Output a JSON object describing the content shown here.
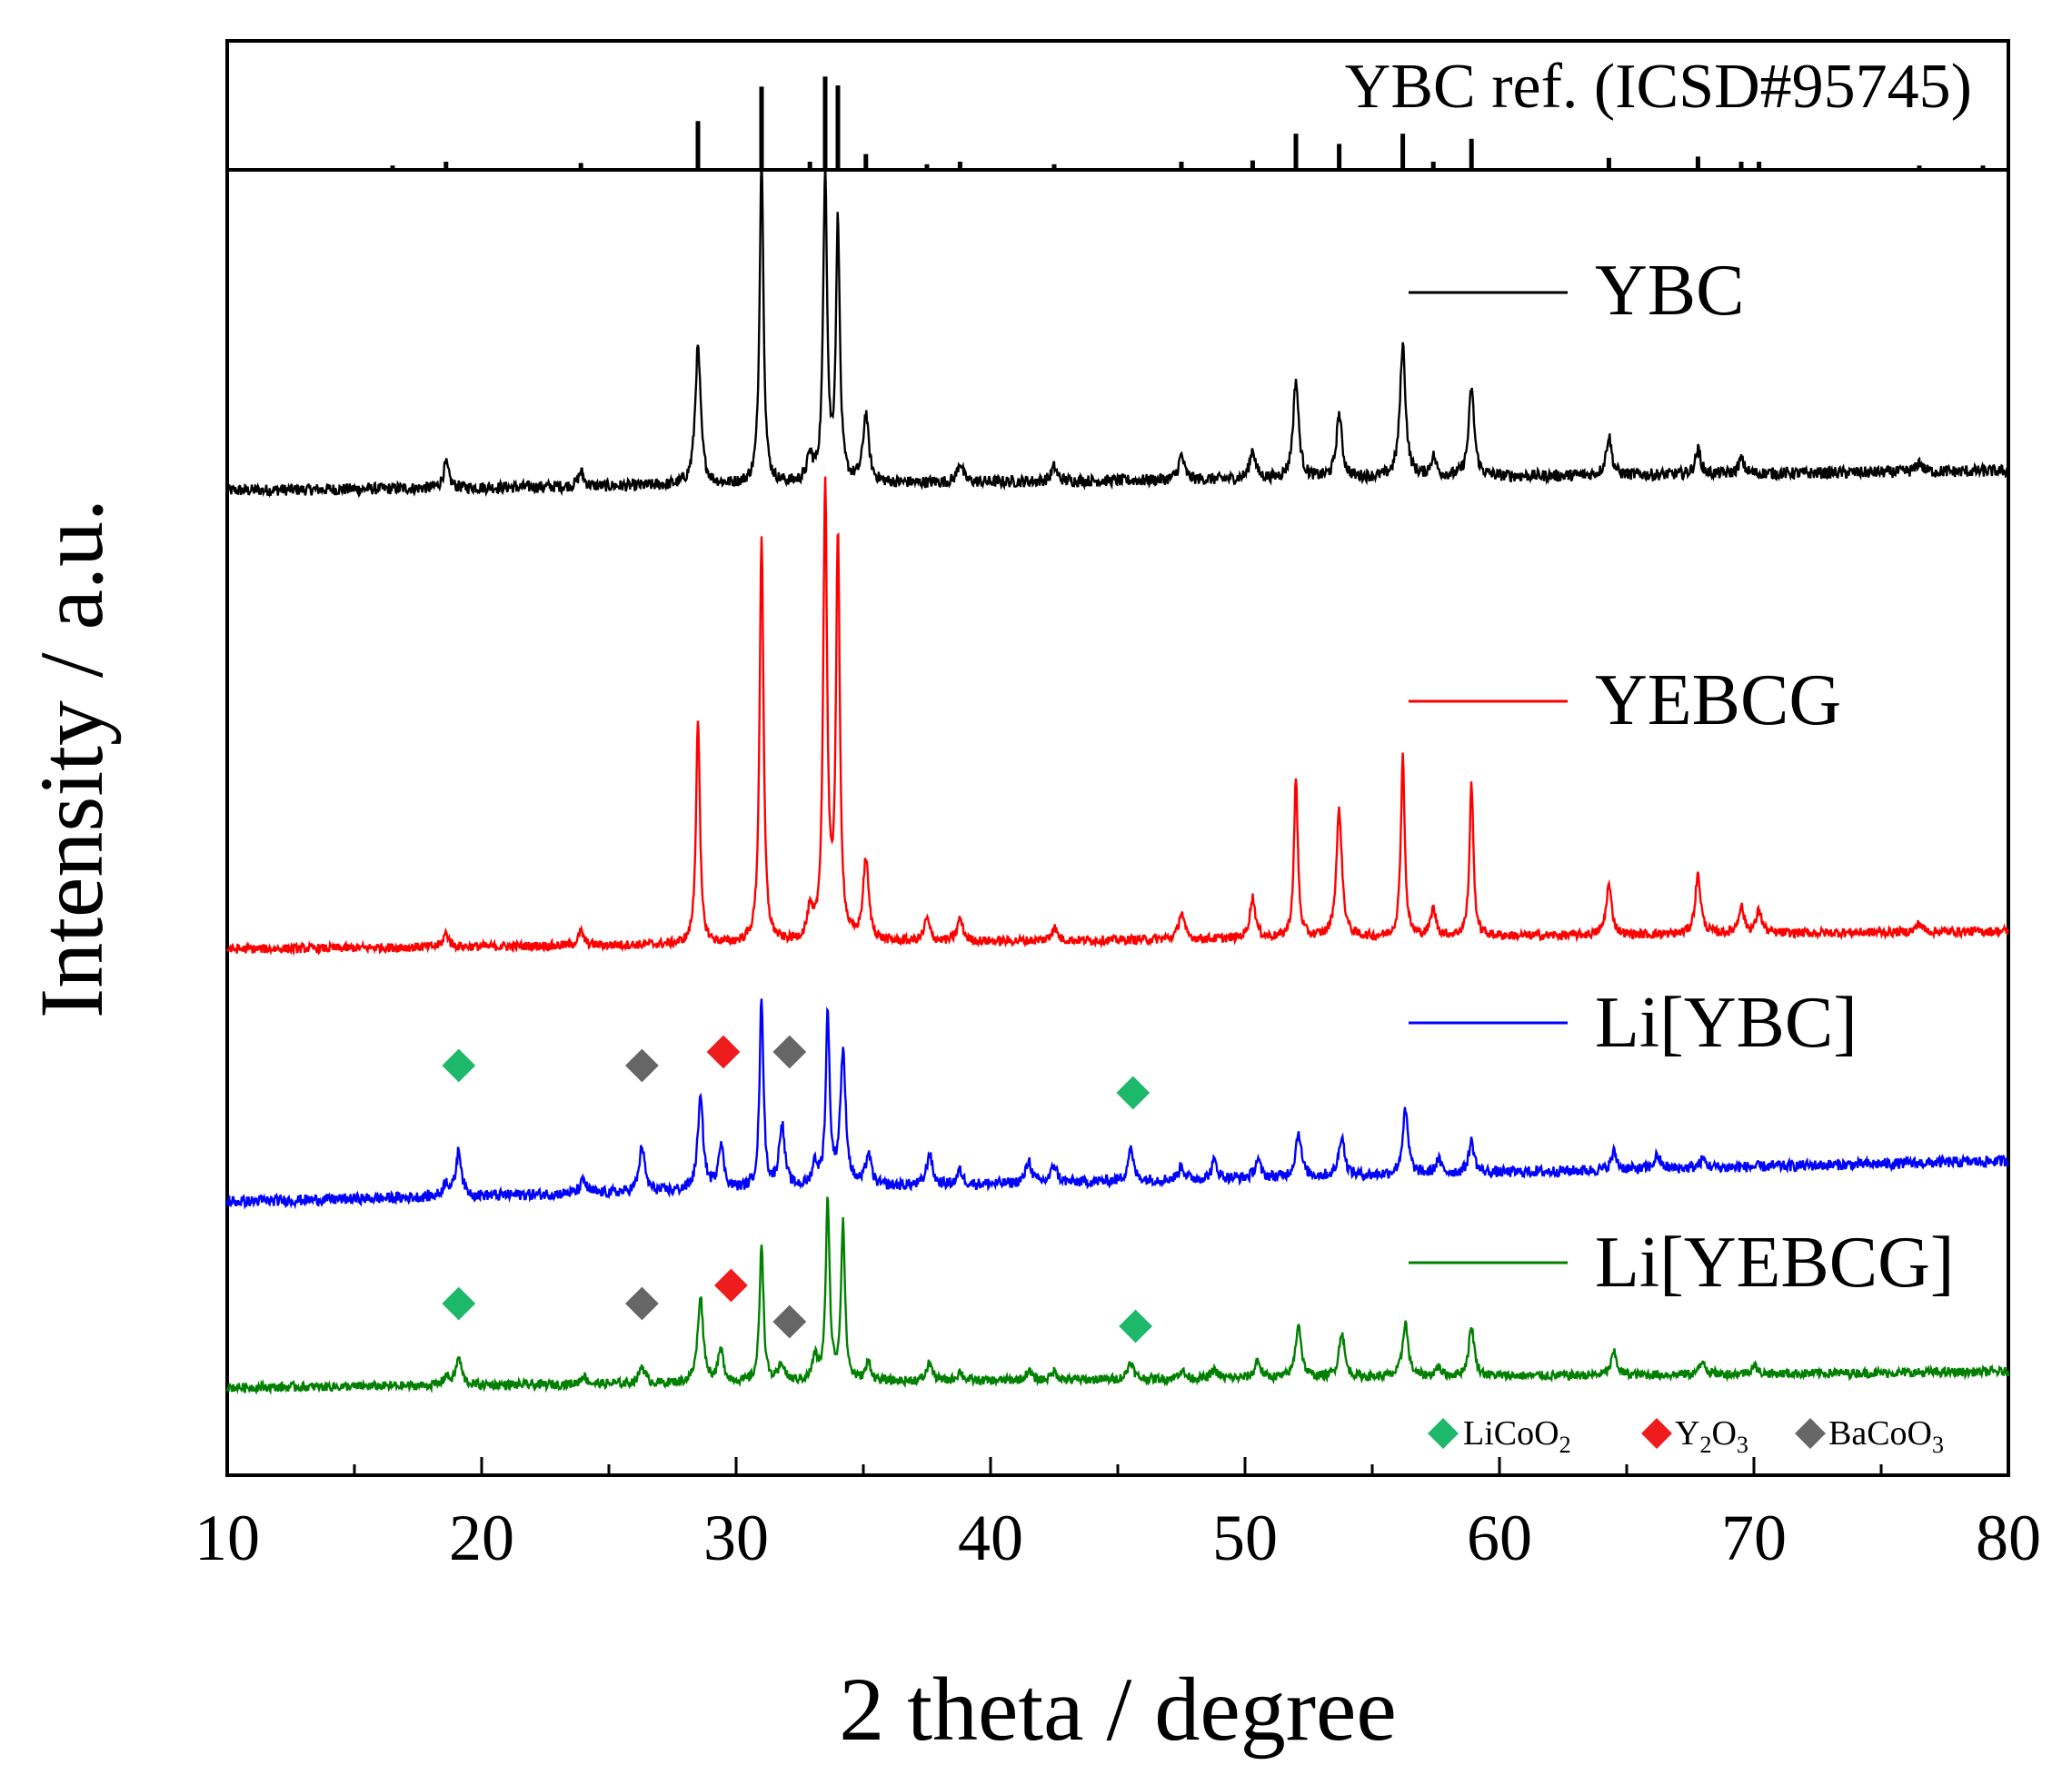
{
  "chart_data": {
    "type": "line",
    "title": "",
    "xlabel": "2 theta / degree",
    "ylabel": "Intensity / a.u.",
    "xlim": [
      10,
      80
    ],
    "x_ticks": [
      10,
      20,
      30,
      40,
      50,
      60,
      70,
      80
    ],
    "grid": false,
    "reference": {
      "name": "YBC ref. (ICSD#95745)",
      "color": "#000000",
      "peaks": [
        {
          "x": 16.5,
          "h": 0.02
        },
        {
          "x": 18.6,
          "h": 0.05
        },
        {
          "x": 23.9,
          "h": 0.04
        },
        {
          "x": 28.5,
          "h": 0.37
        },
        {
          "x": 31.0,
          "h": 0.64
        },
        {
          "x": 32.9,
          "h": 0.05
        },
        {
          "x": 33.5,
          "h": 0.72
        },
        {
          "x": 34.0,
          "h": 0.65
        },
        {
          "x": 35.1,
          "h": 0.11
        },
        {
          "x": 37.5,
          "h": 0.03
        },
        {
          "x": 38.8,
          "h": 0.05
        },
        {
          "x": 42.5,
          "h": 0.03
        },
        {
          "x": 47.5,
          "h": 0.05
        },
        {
          "x": 50.3,
          "h": 0.06
        },
        {
          "x": 52.0,
          "h": 0.27
        },
        {
          "x": 53.7,
          "h": 0.19
        },
        {
          "x": 56.2,
          "h": 0.27
        },
        {
          "x": 57.4,
          "h": 0.05
        },
        {
          "x": 58.9,
          "h": 0.23
        },
        {
          "x": 64.3,
          "h": 0.08
        },
        {
          "x": 67.8,
          "h": 0.09
        },
        {
          "x": 69.5,
          "h": 0.05
        },
        {
          "x": 70.2,
          "h": 0.05
        },
        {
          "x": 76.5,
          "h": 0.02
        },
        {
          "x": 79.0,
          "h": 0.02
        }
      ]
    },
    "series": [
      {
        "name": "YBC",
        "color": "#000000",
        "baseline_start": 0.0,
        "baseline_end": 0.04,
        "noise": 0.012,
        "peaks": [
          {
            "x": 18.6,
            "h": 0.05
          },
          {
            "x": 23.9,
            "h": 0.03
          },
          {
            "x": 28.5,
            "h": 0.28
          },
          {
            "x": 31.0,
            "h": 0.67
          },
          {
            "x": 32.9,
            "h": 0.05
          },
          {
            "x": 33.5,
            "h": 0.64
          },
          {
            "x": 34.0,
            "h": 0.53
          },
          {
            "x": 35.1,
            "h": 0.14
          },
          {
            "x": 38.8,
            "h": 0.04
          },
          {
            "x": 42.5,
            "h": 0.03
          },
          {
            "x": 47.5,
            "h": 0.05
          },
          {
            "x": 50.3,
            "h": 0.06
          },
          {
            "x": 52.0,
            "h": 0.2
          },
          {
            "x": 53.7,
            "h": 0.13
          },
          {
            "x": 56.2,
            "h": 0.27
          },
          {
            "x": 57.4,
            "h": 0.04
          },
          {
            "x": 58.9,
            "h": 0.18
          },
          {
            "x": 64.3,
            "h": 0.08
          },
          {
            "x": 67.8,
            "h": 0.05
          },
          {
            "x": 69.5,
            "h": 0.03
          },
          {
            "x": 76.5,
            "h": 0.02
          }
        ]
      },
      {
        "name": "YEBCG",
        "color": "#ff0000",
        "baseline_start": 0.0,
        "baseline_end": 0.04,
        "noise": 0.01,
        "peaks": [
          {
            "x": 18.6,
            "h": 0.03
          },
          {
            "x": 23.9,
            "h": 0.03
          },
          {
            "x": 28.5,
            "h": 0.5
          },
          {
            "x": 31.0,
            "h": 0.9
          },
          {
            "x": 32.9,
            "h": 0.06
          },
          {
            "x": 33.5,
            "h": 1.0
          },
          {
            "x": 34.0,
            "h": 0.88
          },
          {
            "x": 35.1,
            "h": 0.18
          },
          {
            "x": 37.5,
            "h": 0.05
          },
          {
            "x": 38.8,
            "h": 0.05
          },
          {
            "x": 42.5,
            "h": 0.03
          },
          {
            "x": 47.5,
            "h": 0.06
          },
          {
            "x": 50.3,
            "h": 0.09
          },
          {
            "x": 52.0,
            "h": 0.35
          },
          {
            "x": 53.7,
            "h": 0.28
          },
          {
            "x": 56.2,
            "h": 0.4
          },
          {
            "x": 57.4,
            "h": 0.06
          },
          {
            "x": 58.9,
            "h": 0.34
          },
          {
            "x": 64.3,
            "h": 0.11
          },
          {
            "x": 67.8,
            "h": 0.13
          },
          {
            "x": 69.5,
            "h": 0.06
          },
          {
            "x": 70.2,
            "h": 0.05
          },
          {
            "x": 76.5,
            "h": 0.02
          }
        ]
      },
      {
        "name": "Li[YBC]",
        "color": "#0000ff",
        "baseline_start": -0.08,
        "baseline_end": 0.01,
        "noise": 0.012,
        "peaks": [
          {
            "x": 18.6,
            "h": 0.03
          },
          {
            "x": 19.1,
            "h": 0.1
          },
          {
            "x": 24.0,
            "h": 0.03
          },
          {
            "x": 26.3,
            "h": 0.1
          },
          {
            "x": 28.6,
            "h": 0.2
          },
          {
            "x": 29.4,
            "h": 0.1
          },
          {
            "x": 31.0,
            "h": 0.42
          },
          {
            "x": 31.8,
            "h": 0.14
          },
          {
            "x": 33.1,
            "h": 0.05
          },
          {
            "x": 33.6,
            "h": 0.38
          },
          {
            "x": 34.2,
            "h": 0.29
          },
          {
            "x": 35.2,
            "h": 0.07
          },
          {
            "x": 37.6,
            "h": 0.07
          },
          {
            "x": 38.8,
            "h": 0.03
          },
          {
            "x": 41.5,
            "h": 0.05
          },
          {
            "x": 42.5,
            "h": 0.04
          },
          {
            "x": 45.5,
            "h": 0.07
          },
          {
            "x": 47.5,
            "h": 0.03
          },
          {
            "x": 48.8,
            "h": 0.04
          },
          {
            "x": 50.5,
            "h": 0.04
          },
          {
            "x": 52.1,
            "h": 0.1
          },
          {
            "x": 53.8,
            "h": 0.09
          },
          {
            "x": 56.3,
            "h": 0.14
          },
          {
            "x": 57.6,
            "h": 0.03
          },
          {
            "x": 58.9,
            "h": 0.07
          },
          {
            "x": 64.5,
            "h": 0.04
          },
          {
            "x": 66.2,
            "h": 0.03
          },
          {
            "x": 68.0,
            "h": 0.02
          }
        ]
      },
      {
        "name": "Li[YEBCG]",
        "color": "#008000",
        "baseline_start": -0.005,
        "baseline_end": 0.03,
        "noise": 0.01,
        "peaks": [
          {
            "x": 18.6,
            "h": 0.02
          },
          {
            "x": 19.1,
            "h": 0.06
          },
          {
            "x": 24.0,
            "h": 0.02
          },
          {
            "x": 26.3,
            "h": 0.04
          },
          {
            "x": 28.6,
            "h": 0.19
          },
          {
            "x": 29.4,
            "h": 0.07
          },
          {
            "x": 31.0,
            "h": 0.31
          },
          {
            "x": 31.8,
            "h": 0.04
          },
          {
            "x": 33.1,
            "h": 0.05
          },
          {
            "x": 33.6,
            "h": 0.4
          },
          {
            "x": 34.2,
            "h": 0.35
          },
          {
            "x": 35.2,
            "h": 0.04
          },
          {
            "x": 37.6,
            "h": 0.04
          },
          {
            "x": 38.8,
            "h": 0.02
          },
          {
            "x": 41.5,
            "h": 0.02
          },
          {
            "x": 42.5,
            "h": 0.02
          },
          {
            "x": 45.5,
            "h": 0.04
          },
          {
            "x": 47.5,
            "h": 0.02
          },
          {
            "x": 48.8,
            "h": 0.02
          },
          {
            "x": 50.5,
            "h": 0.04
          },
          {
            "x": 52.1,
            "h": 0.12
          },
          {
            "x": 53.8,
            "h": 0.1
          },
          {
            "x": 56.3,
            "h": 0.12
          },
          {
            "x": 57.6,
            "h": 0.02
          },
          {
            "x": 58.9,
            "h": 0.11
          },
          {
            "x": 64.5,
            "h": 0.05
          },
          {
            "x": 68.0,
            "h": 0.03
          },
          {
            "x": 70.0,
            "h": 0.02
          }
        ]
      }
    ],
    "markers": [
      {
        "series": "Li[YBC]",
        "phase": "LiCoO2",
        "x": 19.1,
        "h": 0.22
      },
      {
        "series": "Li[YBC]",
        "phase": "BaCoO3",
        "x": 26.3,
        "h": 0.22
      },
      {
        "series": "Li[YBC]",
        "phase": "Y2O3",
        "x": 29.5,
        "h": 0.25
      },
      {
        "series": "Li[YBC]",
        "phase": "BaCoO3",
        "x": 32.1,
        "h": 0.25
      },
      {
        "series": "Li[YBC]",
        "phase": "LiCoO2",
        "x": 45.6,
        "h": 0.16
      },
      {
        "series": "Li[YEBCG]",
        "phase": "LiCoO2",
        "x": 19.1,
        "h": 0.18
      },
      {
        "series": "Li[YEBCG]",
        "phase": "BaCoO3",
        "x": 26.3,
        "h": 0.18
      },
      {
        "series": "Li[YEBCG]",
        "phase": "Y2O3",
        "x": 29.8,
        "h": 0.22
      },
      {
        "series": "Li[YEBCG]",
        "phase": "BaCoO3",
        "x": 32.1,
        "h": 0.14
      },
      {
        "series": "Li[YEBCG]",
        "phase": "LiCoO2",
        "x": 45.7,
        "h": 0.13
      }
    ],
    "marker_legend": [
      {
        "phase": "LiCoO2",
        "base": "LiCoO",
        "sub": "2",
        "color": "#1eb86b"
      },
      {
        "phase": "Y2O3",
        "base": "Y",
        "sub": "2",
        "base2": "O",
        "sub2": "3",
        "color": "#ee1c1c"
      },
      {
        "phase": "BaCoO3",
        "base": "BaCoO",
        "sub": "3",
        "color": "#666666"
      }
    ]
  }
}
